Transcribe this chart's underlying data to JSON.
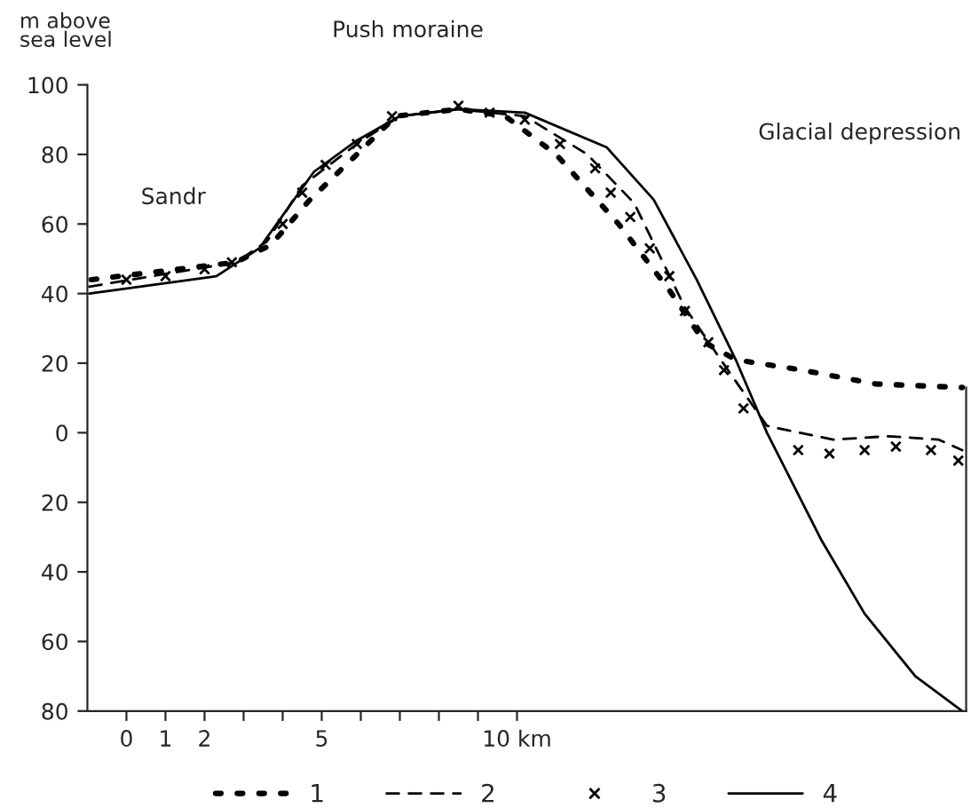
{
  "chart_data": {
    "type": "line",
    "ylabel": "m above\nsea level",
    "annotations": [
      "Push moraine",
      "Sandr",
      "Glacial depression"
    ],
    "xlim": [
      -1,
      21.5
    ],
    "xticks": [
      0,
      1,
      2,
      {
        "value": 3,
        "label": null
      },
      {
        "value": 4,
        "label": null
      },
      5,
      {
        "value": 6,
        "label": null
      },
      {
        "value": 7,
        "label": null
      },
      {
        "value": 8,
        "label": null
      },
      {
        "value": 9,
        "label": null
      },
      {
        "value": 10,
        "label": "10 km"
      }
    ],
    "ylim": [
      -80,
      100
    ],
    "yticks": [
      100,
      80,
      60,
      40,
      20,
      0,
      {
        "value": -20,
        "label": "20"
      },
      {
        "value": -40,
        "label": "40"
      },
      {
        "value": -60,
        "label": "60"
      },
      {
        "value": -80,
        "label": "80"
      }
    ],
    "grid": false,
    "legend": "bottom",
    "series": [
      {
        "name": "1",
        "color": "#000000",
        "line_style": "dotted",
        "x": [
          -0.9,
          2.8,
          3.7,
          4.7,
          5.9,
          6.9,
          8.5,
          9.7,
          11,
          12.6,
          13.9,
          14.8,
          15.6,
          17.3,
          19.2,
          21.4
        ],
        "values": [
          44,
          49,
          54,
          67,
          80,
          91,
          93,
          91,
          80,
          60,
          41,
          26,
          21,
          18,
          14,
          13
        ]
      },
      {
        "name": "2",
        "color": "#000000",
        "line_style": "dashed",
        "x": [
          -0.95,
          2.8,
          3.6,
          4.5,
          5.9,
          7,
          8.5,
          10.2,
          11.8,
          13,
          14.3,
          15.4,
          16.4,
          16.8,
          18.1,
          19.5,
          20.8,
          21.4
        ],
        "values": [
          42,
          49,
          55,
          71,
          83,
          91,
          93,
          91,
          80,
          66,
          36,
          18,
          2,
          1,
          -2,
          -1,
          -2,
          -5
        ]
      },
      {
        "name": "3",
        "color": "#000000",
        "type": "scatter",
        "marker": "cross",
        "x": [
          0,
          1,
          2,
          2.7,
          4,
          4.5,
          5.1,
          5.9,
          6.8,
          8.5,
          9.3,
          10.2,
          11.1,
          12,
          12.4,
          12.9,
          13.4,
          13.9,
          14.3,
          14.9,
          15.3,
          15.8,
          17.2,
          18,
          18.9,
          19.7,
          20.6,
          21.3
        ],
        "values": [
          44,
          45,
          47,
          49,
          60,
          69,
          77,
          83,
          91,
          94,
          92,
          90,
          83,
          76,
          69,
          62,
          53,
          45,
          35,
          26,
          18,
          7,
          -5,
          -6,
          -5,
          -4,
          -5,
          -8
        ]
      },
      {
        "name": "4",
        "color": "#000000",
        "line_style": "solid",
        "x": [
          -0.95,
          2.3,
          3.4,
          4.8,
          5.9,
          7,
          8.5,
          10.2,
          12.3,
          13.5,
          14.6,
          15.6,
          16.4,
          17.8,
          18.9,
          20.2,
          21.4
        ],
        "values": [
          40,
          45,
          53,
          75,
          84,
          91,
          93,
          92,
          82,
          67,
          44,
          21,
          0,
          -31,
          -52,
          -70,
          -80
        ]
      }
    ]
  }
}
